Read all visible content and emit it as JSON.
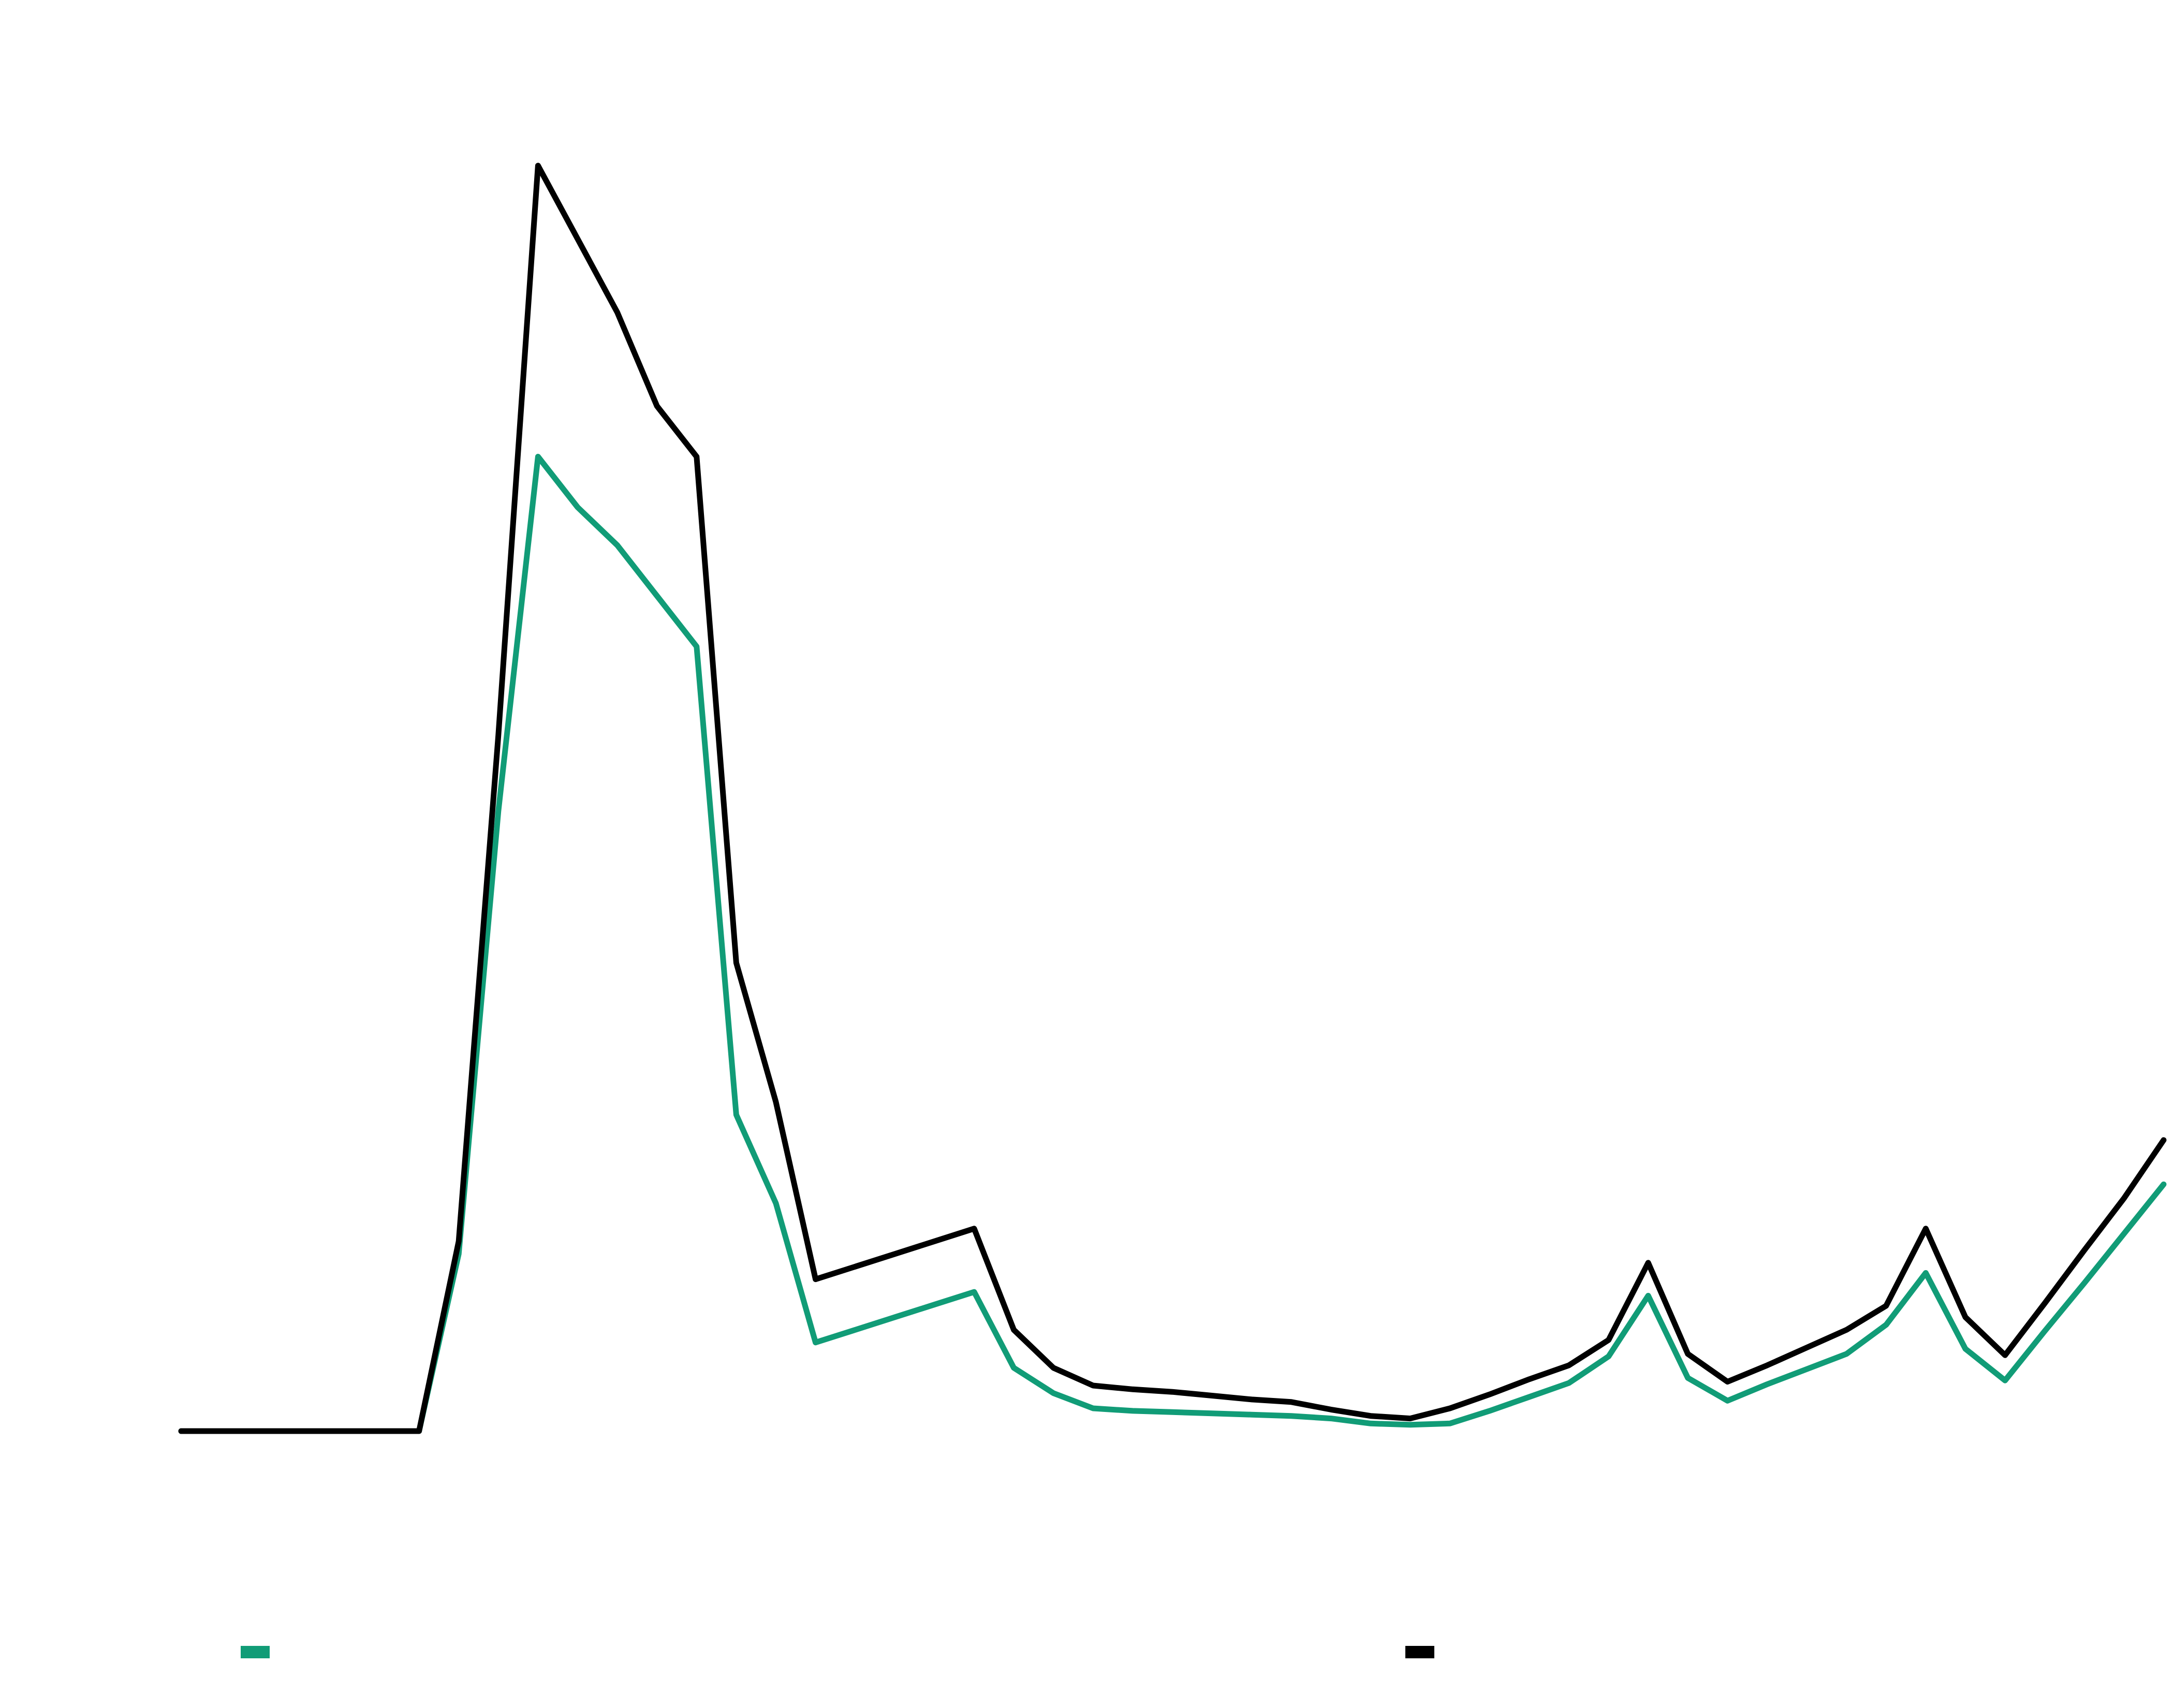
{
  "chart_data": {
    "type": "line",
    "title": "",
    "xlabel": "",
    "ylabel": "",
    "x": [
      0,
      1,
      2,
      3,
      4,
      5,
      6,
      7,
      8,
      9,
      10,
      11,
      12,
      13,
      14,
      15,
      16,
      17,
      18,
      19,
      20,
      21,
      22,
      23,
      24,
      25,
      26,
      27,
      28,
      29,
      30,
      31,
      32,
      33,
      34,
      35,
      36,
      37,
      38,
      39,
      40,
      41,
      42,
      43,
      44,
      45,
      46,
      47,
      48,
      49,
      50
    ],
    "xlim": [
      0,
      50
    ],
    "ylim": [
      0,
      100
    ],
    "grid": false,
    "legend": "bottom",
    "series": [
      {
        "color": "#119c77",
        "values": [
          0,
          0,
          0,
          0,
          0,
          0,
          0,
          14,
          49,
          77,
          73,
          70,
          66,
          62,
          25,
          18,
          7,
          8,
          9,
          10,
          11,
          5,
          3,
          1.8,
          1.6,
          1.5,
          1.4,
          1.3,
          1.2,
          1.0,
          0.6,
          0.5,
          0.6,
          1.6,
          2.7,
          3.8,
          5.9,
          10.7,
          4.2,
          2.4,
          3.7,
          4.9,
          6.1,
          8.4,
          12.5,
          6.5,
          4.0,
          7.9,
          11.7,
          15.6,
          19.5
        ],
        "name": ""
      },
      {
        "color": "#000000",
        "values": [
          0,
          0,
          0,
          0,
          0,
          0,
          0,
          15,
          55,
          100,
          94.2,
          88.4,
          81,
          77,
          37,
          26,
          12,
          13,
          14,
          15,
          16,
          8,
          5,
          3.6,
          3.3,
          3.1,
          2.8,
          2.5,
          2.3,
          1.7,
          1.2,
          1.0,
          1.8,
          2.9,
          4.1,
          5.2,
          7.2,
          13.3,
          6.1,
          3.9,
          5.2,
          6.6,
          8.0,
          9.9,
          16.0,
          9.0,
          6.0,
          10.1,
          14.3,
          18.4,
          23.0
        ],
        "name": ""
      }
    ]
  }
}
